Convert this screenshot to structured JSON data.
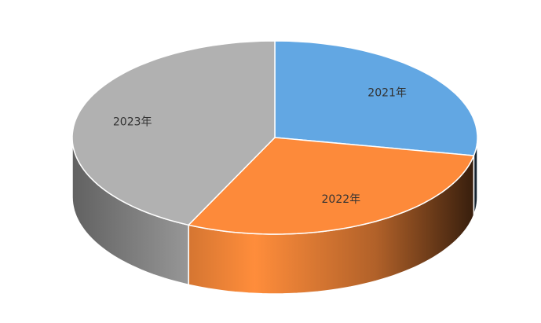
{
  "chart_data": {
    "type": "pie",
    "categories": [
      "2021年",
      "2022年",
      "2023年"
    ],
    "values": [
      28,
      29,
      43
    ],
    "colors": [
      "#62a7e3",
      "#fd8a3a",
      "#b1b1b1"
    ]
  }
}
